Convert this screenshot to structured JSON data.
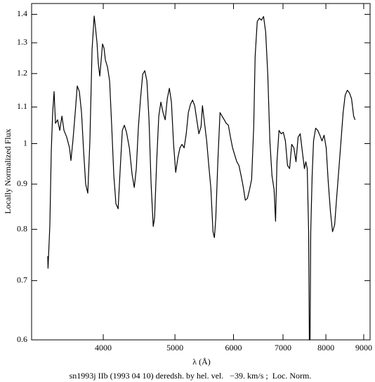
{
  "chart_data": {
    "type": "line",
    "log_x": true,
    "log_y": true,
    "color": "#000000",
    "ylabel": "Locally Normalized Flux",
    "xlabel": "λ (Å)",
    "caption": "sn1993j IIb (1993 04 10) deredsh. by hel. vel.   −39. km/s ;  Loc. Norm.",
    "xlim": [
      3200,
      9180
    ],
    "ylim": [
      0.6,
      1.44
    ],
    "xticks": [
      4000,
      5000,
      6000,
      7000,
      8000,
      9000
    ],
    "yticks": [
      0.6,
      0.7,
      0.8,
      0.9,
      1,
      1.1,
      1.2,
      1.3,
      1.4
    ],
    "x": [
      3365,
      3368,
      3387,
      3402,
      3417,
      3432,
      3447,
      3470,
      3493,
      3517,
      3539,
      3570,
      3601,
      3617,
      3639,
      3665,
      3689,
      3713,
      3738,
      3763,
      3787,
      3812,
      3837,
      3863,
      3888,
      3905,
      3922,
      3939,
      3957,
      3974,
      3991,
      4009,
      4027,
      4053,
      4080,
      4107,
      4134,
      4161,
      4189,
      4217,
      4245,
      4272,
      4300,
      4338,
      4376,
      4405,
      4433,
      4463,
      4492,
      4522,
      4552,
      4582,
      4612,
      4642,
      4673,
      4693,
      4724,
      4755,
      4786,
      4818,
      4850,
      4882,
      4914,
      4946,
      4979,
      5012,
      5045,
      5078,
      5112,
      5145,
      5179,
      5213,
      5248,
      5282,
      5317,
      5352,
      5387,
      5423,
      5447,
      5483,
      5519,
      5555,
      5592,
      5629,
      5653,
      5678,
      5715,
      5753,
      5791,
      5829,
      5867,
      5905,
      5944,
      5983,
      6023,
      6062,
      6102,
      6143,
      6183,
      6224,
      6265,
      6307,
      6348,
      6390,
      6418,
      6460,
      6503,
      6545,
      6589,
      6632,
      6676,
      6720,
      6764,
      6809,
      6839,
      6869,
      6914,
      6960,
      7006,
      7052,
      7099,
      7146,
      7193,
      7241,
      7289,
      7337,
      7385,
      7434,
      7483,
      7516,
      7549,
      7582,
      7598,
      7615,
      7632,
      7665,
      7699,
      7749,
      7800,
      7851,
      7903,
      7955,
      8007,
      8060,
      8113,
      8167,
      8221,
      8275,
      8330,
      8385,
      8440,
      8495,
      8552,
      8608,
      8665,
      8723,
      8761
    ],
    "series": [
      {
        "values": [
          0.746,
          0.723,
          0.809,
          0.98,
          1.084,
          1.145,
          1.054,
          1.064,
          1.035,
          1.074,
          1.035,
          1.017,
          0.989,
          0.957,
          1.007,
          1.084,
          1.162,
          1.145,
          1.084,
          0.98,
          0.9,
          0.879,
          1.007,
          1.277,
          1.394,
          1.349,
          1.301,
          1.231,
          1.192,
          1.243,
          1.296,
          1.282,
          1.243,
          1.22,
          1.177,
          1.045,
          0.92,
          0.855,
          0.844,
          0.937,
          1.035,
          1.049,
          1.03,
          0.989,
          0.923,
          0.892,
          0.937,
          1.045,
          1.124,
          1.198,
          1.209,
          1.177,
          1.064,
          0.903,
          0.806,
          0.824,
          0.954,
          1.074,
          1.114,
          1.084,
          1.064,
          1.124,
          1.155,
          1.114,
          0.998,
          0.928,
          0.963,
          0.989,
          0.998,
          0.989,
          1.026,
          1.084,
          1.108,
          1.12,
          1.104,
          1.064,
          1.026,
          1.045,
          1.104,
          1.054,
          1.007,
          0.945,
          0.89,
          0.795,
          0.783,
          0.824,
          0.954,
          1.084,
          1.074,
          1.064,
          1.054,
          1.049,
          1.017,
          0.989,
          0.971,
          0.954,
          0.945,
          0.92,
          0.895,
          0.863,
          0.867,
          0.887,
          0.911,
          1.045,
          1.254,
          1.374,
          1.386,
          1.379,
          1.392,
          1.337,
          1.198,
          1.007,
          0.92,
          0.887,
          0.817,
          0.954,
          1.035,
          1.026,
          1.03,
          1.007,
          0.945,
          0.937,
          0.998,
          0.989,
          0.954,
          1.017,
          1.026,
          0.98,
          0.937,
          0.954,
          0.937,
          0.795,
          0.6,
          0.6,
          0.795,
          0.92,
          1.007,
          1.041,
          1.035,
          1.022,
          1.007,
          1.022,
          0.989,
          0.903,
          0.839,
          0.795,
          0.809,
          0.871,
          0.937,
          1.007,
          1.084,
          1.134,
          1.149,
          1.141,
          1.124,
          1.074,
          1.064
        ]
      }
    ]
  }
}
